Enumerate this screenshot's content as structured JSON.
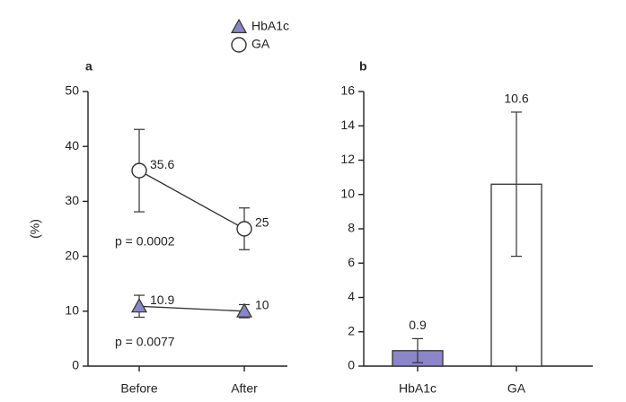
{
  "chart_data": [
    {
      "type": "line",
      "panel_label": "a",
      "y_label": "(%)",
      "categories": [
        "Before",
        "After"
      ],
      "series": [
        {
          "name": "HbA1c",
          "color": "#8a86c8",
          "marker": "triangle",
          "values": [
            10.9,
            10.0
          ],
          "errors": [
            2.0,
            1.2
          ]
        },
        {
          "name": "GA",
          "color": "#ffffff",
          "marker": "circle",
          "values": [
            35.6,
            25.0
          ],
          "errors": [
            7.5,
            3.8
          ]
        }
      ],
      "annotations": [
        "p = 0.0002",
        "p = 0.0077"
      ],
      "ylim": [
        0,
        50
      ],
      "yticks": [
        0,
        10,
        20,
        30,
        40,
        50
      ]
    },
    {
      "type": "bar",
      "panel_label": "b",
      "categories": [
        "HbA1c",
        "GA"
      ],
      "values": [
        0.9,
        10.6
      ],
      "errors": [
        0.7,
        4.2
      ],
      "colors": [
        "#8a86c8",
        "#ffffff"
      ],
      "ylim": [
        0,
        16
      ],
      "yticks": [
        0,
        2,
        4,
        6,
        8,
        10,
        12,
        14,
        16
      ]
    }
  ]
}
